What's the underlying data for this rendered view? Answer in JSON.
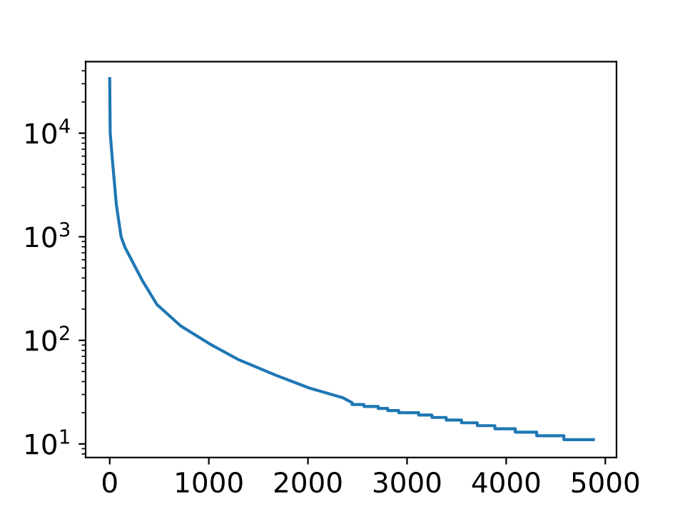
{
  "chart_data": {
    "type": "line",
    "log": "y",
    "grid": false,
    "legend": false,
    "marker": "none",
    "line_style": "solid",
    "xlim": [
      -243,
      5113
    ],
    "ylim": [
      7.4,
      49000
    ],
    "xticks": [
      0,
      1000,
      2000,
      3000,
      4000,
      5000
    ],
    "yticks": [
      {
        "value": 10,
        "label": "10$^{1}$"
      },
      {
        "value": 100,
        "label": "10$^{2}$"
      },
      {
        "value": 1000,
        "label": "10$^{3}$"
      },
      {
        "value": 10000,
        "label": "10$^{4}$"
      }
    ],
    "series": [
      {
        "color": "#1f77b4",
        "x": [
          0,
          5,
          29,
          67,
          115,
          154,
          331,
          476,
          716,
          1004,
          1292,
          1676,
          2013,
          2349,
          2445,
          2445,
          2565,
          2565,
          2709,
          2709,
          2805,
          2805,
          2916,
          2916,
          3117,
          3117,
          3251,
          3251,
          3395,
          3395,
          3549,
          3549,
          3709,
          3709,
          3886,
          3886,
          4092,
          4092,
          4308,
          4308,
          4582,
          4582,
          4880
        ],
        "values": [
          33600,
          10000,
          5280,
          2040,
          1000,
          789,
          375,
          222,
          138,
          93,
          65.6,
          46,
          34.7,
          28,
          25,
          24,
          24,
          23,
          23,
          22,
          22,
          21,
          21,
          20,
          20,
          19,
          19,
          18,
          18,
          17,
          17,
          16,
          16,
          15,
          15,
          14,
          14,
          13,
          13,
          12,
          12,
          11,
          11
        ]
      }
    ]
  }
}
